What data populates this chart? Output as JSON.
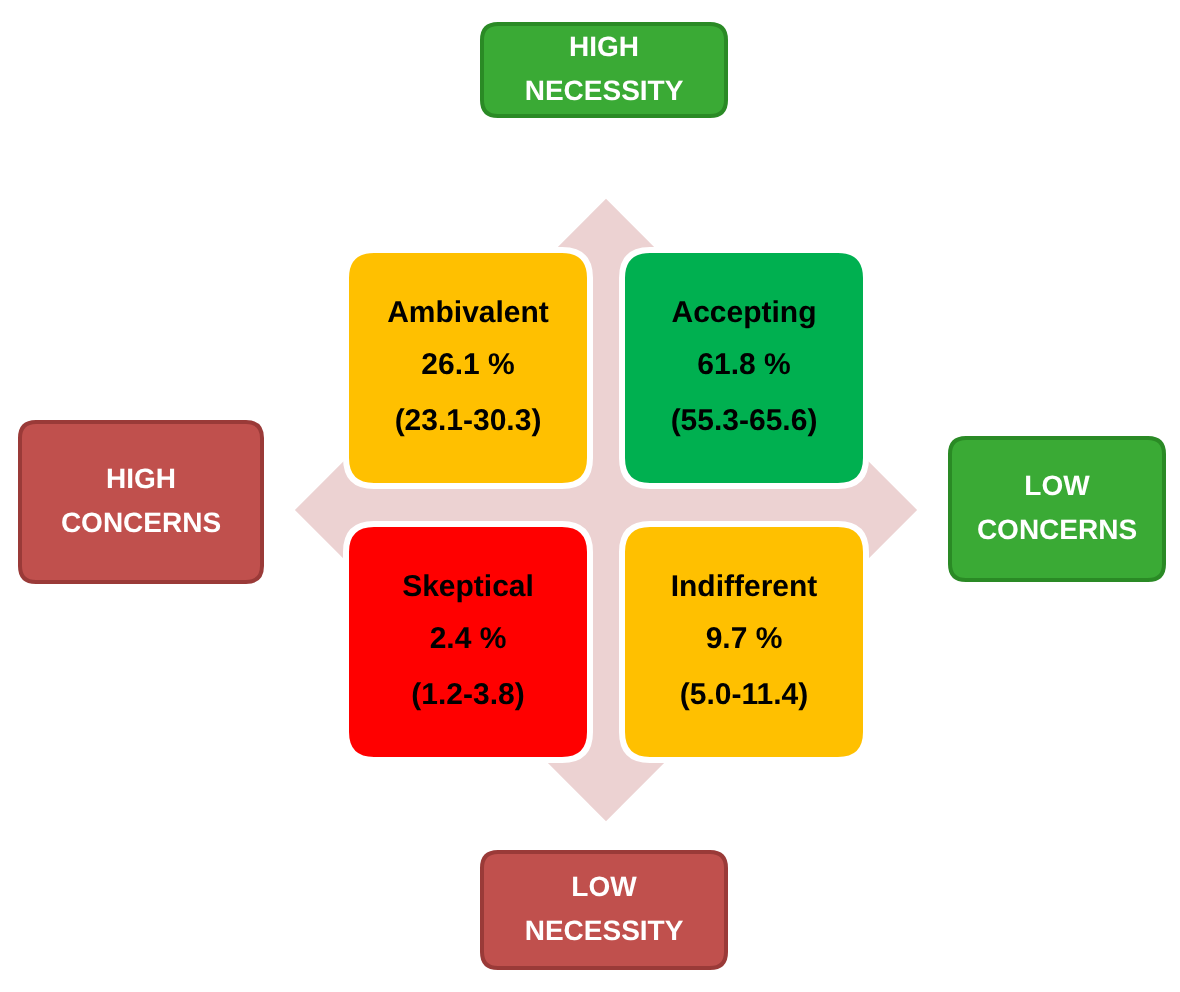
{
  "chart_data": {
    "type": "other",
    "categories": [
      "Ambivalent",
      "Accepting",
      "Skeptical",
      "Indifferent"
    ],
    "values": [
      26.1,
      61.8,
      2.4,
      9.7
    ],
    "value_labels": [
      "26.1 %",
      "61.8 %",
      "2.4 %",
      "9.7 %"
    ],
    "colors": [
      "#ffc000",
      "#00b050",
      "#ff0000",
      "#ffc000"
    ],
    "annotations": [
      "HIGH NECESSITY",
      "LOW CONCERNS",
      "LOW NECESSITY",
      "HIGH CONCERNS",
      "(23.1-30.3)",
      "(55.3-65.6)",
      "(1.2-3.8)",
      "(5.0-11.4)"
    ]
  }
}
